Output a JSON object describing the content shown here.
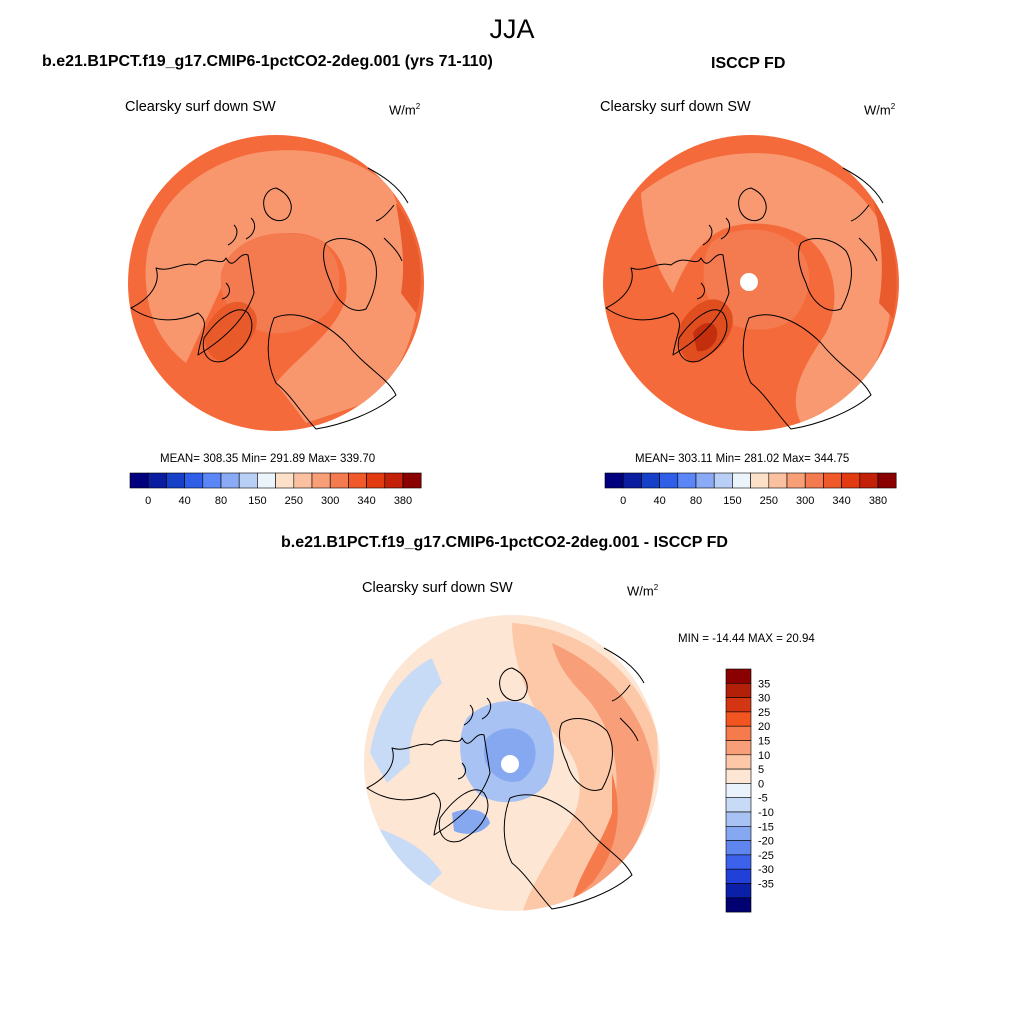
{
  "season": "JJA",
  "colors": {
    "ocean_fill": "#f56a3a",
    "coast_line": "#000000",
    "missing": "#ffffff"
  },
  "panels": {
    "model": {
      "title": "b.e21.B1PCT.f19_g17.CMIP6-1pctCO2-2deg.001 (yrs 71-110)",
      "variable": "Clearsky surf down SW",
      "units_base": "W/m",
      "units_sup": "2",
      "stats": "MEAN= 308.35  Min= 291.89  Max= 339.70"
    },
    "obs": {
      "title": "ISCCP FD",
      "variable": "Clearsky surf down SW",
      "units_base": "W/m",
      "units_sup": "2",
      "stats": "MEAN= 303.11  Min= 281.02  Max= 344.75"
    },
    "diff": {
      "title": "b.e21.B1PCT.f19_g17.CMIP6-1pctCO2-2deg.001 - ISCCP FD",
      "variable": "Clearsky surf down SW",
      "units_base": "W/m",
      "units_sup": "2",
      "stats": "MIN = -14.44 MAX =  20.94"
    }
  },
  "colorbar_main": {
    "colors": [
      "#00007f",
      "#0a1ca0",
      "#1740c8",
      "#2f5fe8",
      "#5a87f5",
      "#8aaaf5",
      "#b9cff6",
      "#ebf3fb",
      "#fde0c8",
      "#fbc0a0",
      "#f89f78",
      "#f47a50",
      "#f05a2a",
      "#e23b12",
      "#c32008",
      "#8b0000"
    ],
    "labels": [
      "0",
      "40",
      "80",
      "150",
      "250",
      "300",
      "340",
      "380"
    ]
  },
  "colorbar_diff": {
    "colors": [
      "#8b0000",
      "#b3200a",
      "#d43512",
      "#f25520",
      "#f57a4c",
      "#f89e78",
      "#fcc8a8",
      "#fde6d4",
      "#eaf3fb",
      "#c8dbf6",
      "#a8c2f3",
      "#86a8f0",
      "#5f86ee",
      "#3c62ec",
      "#2040d8",
      "#0a20a8",
      "#000070"
    ],
    "labels": [
      "35",
      "30",
      "25",
      "20",
      "15",
      "10",
      "5",
      "0",
      "-5",
      "-10",
      "-15",
      "-20",
      "-25",
      "-30",
      "-35"
    ]
  }
}
